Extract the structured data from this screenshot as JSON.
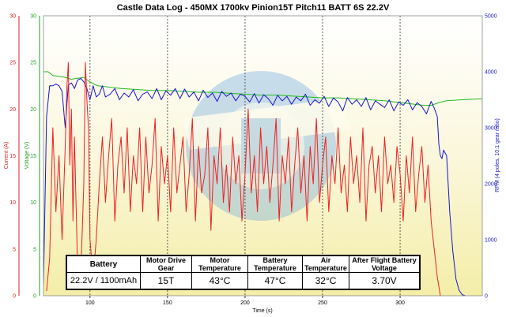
{
  "chart_data": {
    "type": "line",
    "title": "Castle Data Log - 450MX 1700kv Pinion15T Pitch11 BATT 6S 22.2V",
    "xlabel": "Time (s)",
    "xlim": [
      70,
      353
    ],
    "x_ticks": [
      100,
      150,
      200,
      250,
      300
    ],
    "axes": {
      "current": {
        "label": "Current (A)",
        "range": [
          0,
          30
        ],
        "ticks": [
          0,
          5,
          10,
          15,
          20,
          25,
          30
        ],
        "color": "#e02020"
      },
      "voltage": {
        "label": "Voltage (V)",
        "range": [
          0,
          30
        ],
        "ticks": [
          0,
          5,
          10,
          15,
          20,
          25,
          30
        ],
        "color": "#20a020"
      },
      "rpm": {
        "label": "RPM (4 poles, 10:1 gear ratio)",
        "range": [
          0,
          5000
        ],
        "ticks": [
          0,
          1000,
          2000,
          3000,
          4000,
          5000
        ],
        "color": "#2020c0"
      }
    },
    "vertical_gridlines": [
      100,
      150,
      200,
      250,
      300
    ],
    "series": [
      {
        "name": "Voltage",
        "axis": "voltage",
        "color": "#22bb22",
        "x": [
          70,
          73,
          76,
          80,
          84,
          88,
          92,
          96,
          100,
          105,
          110,
          120,
          130,
          140,
          150,
          160,
          170,
          180,
          190,
          200,
          210,
          220,
          230,
          240,
          250,
          260,
          270,
          280,
          290,
          300,
          305,
          310,
          315,
          320,
          325,
          330,
          340,
          353
        ],
        "y": [
          24.0,
          24.0,
          23.6,
          23.5,
          23.4,
          23.2,
          23.3,
          23.4,
          22.9,
          22.5,
          22.4,
          22.2,
          22.1,
          22.0,
          22.0,
          21.9,
          21.8,
          21.8,
          21.7,
          21.6,
          21.5,
          21.5,
          21.4,
          21.3,
          21.2,
          21.2,
          21.1,
          21.0,
          20.9,
          20.7,
          20.6,
          20.5,
          20.4,
          20.4,
          20.7,
          20.9,
          21.0,
          21.1
        ]
      },
      {
        "name": "RPM",
        "axis": "rpm",
        "color": "#1515cc",
        "x": [
          70,
          72,
          74,
          76,
          78,
          80,
          82,
          84,
          86,
          88,
          90,
          92,
          94,
          96,
          98,
          100,
          102,
          104,
          106,
          108,
          110,
          113,
          116,
          119,
          122,
          125,
          128,
          131,
          134,
          137,
          140,
          143,
          146,
          149,
          152,
          155,
          158,
          161,
          164,
          167,
          170,
          173,
          176,
          179,
          182,
          185,
          188,
          191,
          194,
          197,
          200,
          203,
          206,
          209,
          212,
          215,
          218,
          221,
          224,
          227,
          230,
          233,
          236,
          239,
          242,
          245,
          248,
          251,
          254,
          257,
          260,
          263,
          266,
          269,
          272,
          275,
          278,
          281,
          284,
          287,
          290,
          293,
          296,
          299,
          302,
          305,
          308,
          311,
          314,
          317,
          320,
          322,
          324,
          325,
          326,
          327,
          328,
          330,
          332,
          334,
          336,
          338,
          340,
          342
        ],
        "y": [
          200,
          3200,
          3750,
          3750,
          3780,
          3750,
          3650,
          3000,
          3760,
          3800,
          3700,
          3850,
          3880,
          3820,
          3700,
          3500,
          3750,
          3550,
          3600,
          3750,
          3550,
          3600,
          3700,
          3500,
          3620,
          3550,
          3680,
          3480,
          3600,
          3640,
          3520,
          3700,
          3500,
          3660,
          3580,
          3700,
          3520,
          3690,
          3550,
          3640,
          3480,
          3670,
          3540,
          3620,
          3470,
          3650,
          3560,
          3620,
          3480,
          3600,
          3560,
          3460,
          3610,
          3440,
          3590,
          3520,
          3400,
          3580,
          3480,
          3560,
          3420,
          3550,
          3480,
          3600,
          3400,
          3500,
          3440,
          3560,
          3380,
          3530,
          3460,
          3300,
          3540,
          3420,
          3500,
          3380,
          3540,
          3320,
          3480,
          3420,
          3360,
          3500,
          3300,
          3460,
          3400,
          3500,
          3320,
          3450,
          3380,
          3250,
          3470,
          3350,
          3200,
          2700,
          2500,
          2450,
          2600,
          2500,
          1500,
          800,
          300,
          100,
          20,
          0
        ]
      },
      {
        "name": "Current",
        "axis": "current",
        "color": "#ee2020",
        "x": [
          72,
          74,
          76,
          78,
          80,
          82,
          84,
          85,
          86,
          87,
          88,
          89,
          90,
          92,
          94,
          96,
          97,
          98,
          99,
          100,
          102,
          104,
          106,
          108,
          110,
          112,
          114,
          116,
          118,
          120,
          122,
          124,
          126,
          128,
          130,
          132,
          134,
          136,
          138,
          140,
          142,
          144,
          146,
          148,
          150,
          152,
          154,
          156,
          158,
          160,
          162,
          164,
          166,
          168,
          170,
          172,
          174,
          176,
          178,
          180,
          182,
          184,
          186,
          188,
          190,
          192,
          194,
          196,
          198,
          200,
          202,
          204,
          206,
          208,
          210,
          212,
          214,
          216,
          218,
          220,
          222,
          224,
          226,
          228,
          230,
          232,
          234,
          236,
          238,
          240,
          242,
          244,
          246,
          248,
          250,
          252,
          254,
          256,
          258,
          260,
          262,
          264,
          266,
          268,
          270,
          272,
          274,
          276,
          278,
          280,
          282,
          284,
          286,
          288,
          290,
          292,
          294,
          296,
          298,
          300,
          302,
          304,
          306,
          308,
          310,
          312,
          314,
          316,
          318,
          320,
          322,
          324,
          326
        ],
        "y": [
          0.5,
          4,
          18,
          9,
          15,
          6,
          16,
          22,
          25,
          14,
          20,
          8,
          17,
          3,
          2,
          12,
          25,
          21,
          18,
          6,
          2,
          6,
          12,
          17,
          10,
          15,
          19,
          8,
          14,
          17,
          11,
          18,
          9,
          15,
          12,
          18,
          9,
          17,
          11,
          14,
          19,
          8,
          16,
          12,
          15,
          9,
          18,
          11,
          14,
          17,
          9,
          13,
          19,
          8,
          16,
          11,
          13,
          18,
          7,
          15,
          12,
          18,
          10,
          14,
          9,
          17,
          12,
          15,
          8,
          13,
          20,
          11,
          15,
          9,
          18,
          12,
          16,
          10,
          14,
          19,
          8,
          15,
          12,
          17,
          9,
          14,
          18,
          11,
          15,
          8,
          16,
          12,
          19,
          10,
          14,
          17,
          9,
          15,
          12,
          18,
          11,
          14,
          9,
          17,
          12,
          15,
          10,
          18,
          8,
          14,
          16,
          11,
          15,
          9,
          17,
          12,
          14,
          10,
          16,
          13,
          8,
          15,
          11,
          17,
          9,
          13,
          16,
          10,
          14,
          8,
          5,
          2,
          0
        ]
      }
    ],
    "grid": "vertical-dashed",
    "legend": "none"
  },
  "table": {
    "headers": [
      "Battery",
      "Motor Drive Gear",
      "Motor Temperature",
      "Battery Temperature",
      "Air Temperature",
      "After Flight Battery Voltage"
    ],
    "values": [
      "22.2V / 1100mAh",
      "15T",
      "43°C",
      "47°C",
      "32°C",
      "3.70V"
    ]
  }
}
